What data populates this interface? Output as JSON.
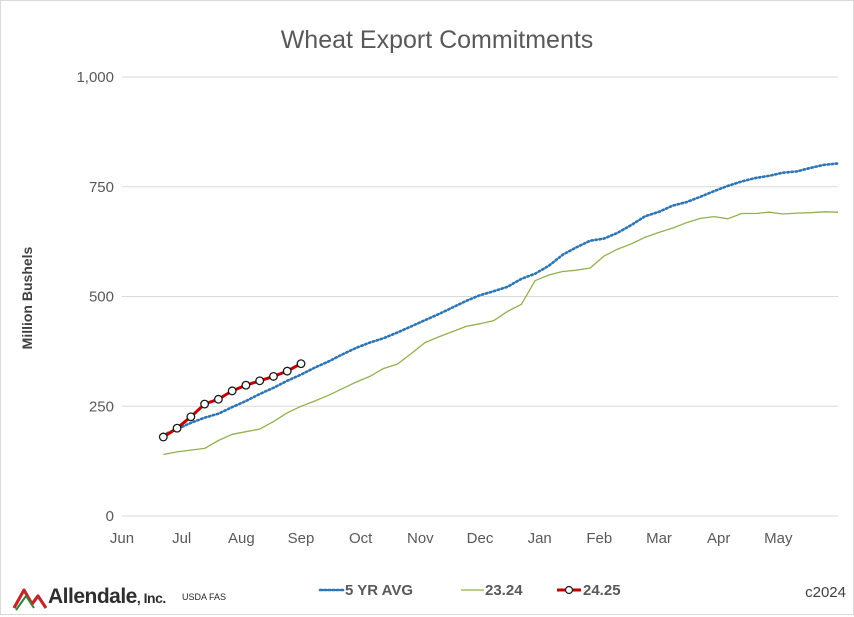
{
  "footer": {
    "logo_name": "Allendale",
    "logo_suffix": ", Inc.",
    "source": "USDA FAS",
    "copyright": "c2024"
  },
  "colors": {
    "avg": "#2e75b6",
    "prev": "#92b050",
    "curr": "#c00000",
    "grid": "#d9d9d9",
    "logo_red": "#c0272d",
    "logo_green": "#3a7d3a"
  },
  "chart_data": {
    "type": "line",
    "title": "Wheat Export Commitments",
    "ylabel": "Million Bushels",
    "xlabel": "",
    "ylim": [
      0,
      1000
    ],
    "yticks": [
      0,
      250,
      500,
      750,
      1000
    ],
    "ytick_labels": [
      "0",
      "250",
      "500",
      "750",
      "1,000"
    ],
    "x_categories": [
      "Jun",
      "Jul",
      "Aug",
      "Sep",
      "Oct",
      "Nov",
      "Dec",
      "Jan",
      "Feb",
      "Mar",
      "Apr",
      "May"
    ],
    "x_weeks_range": [
      0,
      52
    ],
    "grid": "horizontal",
    "legend_position": "bottom",
    "series": [
      {
        "name": "5 YR AVG",
        "style": "dotted",
        "x": [
          3,
          4,
          5,
          6,
          7,
          8,
          9,
          10,
          11,
          12,
          13,
          14,
          15,
          16,
          17,
          18,
          19,
          20,
          21,
          22,
          23,
          24,
          25,
          26,
          27,
          28,
          29,
          30,
          31,
          32,
          33,
          34,
          35,
          36,
          37,
          38,
          39,
          40,
          41,
          42,
          43,
          44,
          45,
          46,
          47,
          48,
          49,
          50,
          51,
          52
        ],
        "y": [
          185,
          198,
          212,
          224,
          233,
          248,
          262,
          278,
          292,
          308,
          322,
          338,
          352,
          368,
          383,
          395,
          405,
          418,
          432,
          446,
          460,
          475,
          490,
          503,
          512,
          522,
          540,
          552,
          570,
          595,
          612,
          627,
          632,
          645,
          663,
          683,
          693,
          707,
          715,
          727,
          740,
          752,
          762,
          770,
          775,
          782,
          785,
          793,
          800,
          803
        ]
      },
      {
        "name": "23.24",
        "style": "solid",
        "x": [
          3,
          4,
          5,
          6,
          7,
          8,
          9,
          10,
          11,
          12,
          13,
          14,
          15,
          16,
          17,
          18,
          19,
          20,
          21,
          22,
          23,
          24,
          25,
          26,
          27,
          28,
          29,
          30,
          31,
          32,
          33,
          34,
          35,
          36,
          37,
          38,
          39,
          40,
          41,
          42,
          43,
          44,
          45,
          46,
          47,
          48,
          49,
          50,
          51,
          52
        ],
        "y": [
          140,
          146,
          150,
          154,
          172,
          186,
          192,
          198,
          215,
          235,
          250,
          262,
          275,
          290,
          305,
          318,
          336,
          346,
          370,
          395,
          408,
          420,
          432,
          438,
          445,
          466,
          482,
          536,
          549,
          557,
          560,
          565,
          592,
          608,
          620,
          635,
          646,
          656,
          668,
          678,
          682,
          677,
          689,
          689,
          692,
          688,
          690,
          691,
          693,
          692
        ]
      },
      {
        "name": "24.25",
        "style": "solid-markers",
        "x": [
          3,
          4,
          5,
          6,
          7,
          8,
          9,
          10,
          11,
          12,
          13
        ],
        "y": [
          180,
          200,
          226,
          255,
          266,
          285,
          298,
          308,
          318,
          330,
          347
        ]
      }
    ]
  }
}
